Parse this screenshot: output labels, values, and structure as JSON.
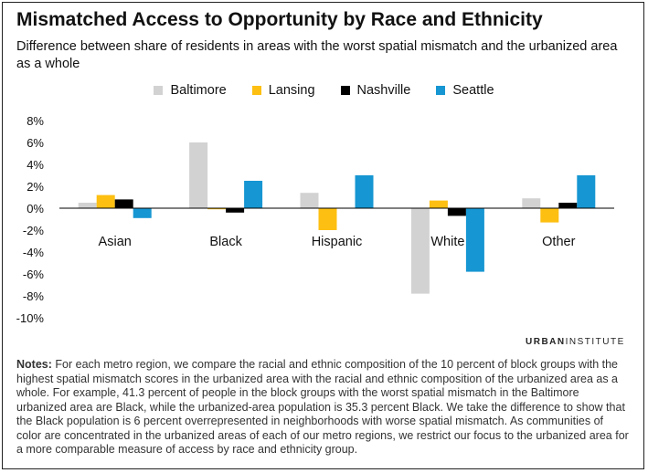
{
  "title": "Mismatched Access to Opportunity by Race and Ethnicity",
  "subtitle": "Difference between share of residents in areas with the worst spatial mismatch and the urbanized area as a whole",
  "brand": {
    "part1": "URBAN",
    "part2": "INSTITUTE"
  },
  "notes": {
    "label": "Notes:",
    "text": "For each metro region, we compare the racial and ethnic composition of the 10 percent of block groups with the highest spatial mismatch scores in the urbanized area with the racial and ethnic composition of the urbanized area as a whole. For example, 41.3 percent of people in the block groups with the worst spatial mismatch in the Baltimore urbanized area are Black, while the urbanized-area population is 35.3 percent Black. We take the difference to show that the Black population is 6 percent overrepresented in neighborhoods with worse spatial mismatch. As communities of color are concentrated in the urbanized areas of each of our metro regions, we restrict our focus to the urbanized area for a more comparable measure of access by race and ethnicity group."
  },
  "chart_data": {
    "type": "bar",
    "categories": [
      "Asian",
      "Black",
      "Hispanic",
      "White",
      "Other"
    ],
    "series": [
      {
        "name": "Baltimore",
        "color": "#d2d2d2",
        "values": [
          0.5,
          6.0,
          1.4,
          -7.8,
          0.9
        ]
      },
      {
        "name": "Lansing",
        "color": "#fdbf11",
        "values": [
          1.2,
          -0.1,
          -2.0,
          0.7,
          -1.3
        ]
      },
      {
        "name": "Nashville",
        "color": "#000000",
        "values": [
          0.8,
          -0.4,
          0.0,
          -0.7,
          0.5
        ]
      },
      {
        "name": "Seattle",
        "color": "#1696d2",
        "values": [
          -0.9,
          2.5,
          3.0,
          -5.8,
          3.0
        ]
      }
    ],
    "ylim": [
      -10,
      8
    ],
    "yticks": [
      "8%",
      "6%",
      "4%",
      "2%",
      "0%",
      "-2%",
      "-4%",
      "-6%",
      "-8%",
      "-10%"
    ],
    "grid": false,
    "legend_position": "top"
  }
}
